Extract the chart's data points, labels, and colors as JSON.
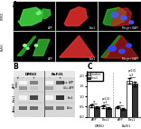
{
  "panel_A": {
    "rows": [
      "DMSO",
      "BaFil1"
    ],
    "cols": [
      "APP",
      "Eas1",
      "Merge+DAPI"
    ],
    "bg_color": "#000000",
    "row_label_color": "#000000"
  },
  "panel_B": {
    "conditions": [
      "DMSO",
      "BaFil1"
    ],
    "lane_signs": [
      "-",
      "+",
      "-",
      "+"
    ],
    "band_groups": [
      {
        "label": "Ima. APP",
        "intensities": [
          0.05,
          0.55,
          0.05,
          0.75
        ]
      },
      {
        "label": "Glu. APP",
        "intensities": [
          0.45,
          0.25,
          0.4,
          0.15
        ]
      },
      {
        "label": "Eas1",
        "intensities": [
          0.05,
          0.8,
          0.05,
          0.9
        ]
      },
      {
        "label": "Actin",
        "intensities": [
          0.65,
          0.65,
          0.6,
          0.6
        ]
      }
    ],
    "bg_color": "#d8d8d8"
  },
  "panel_C": {
    "x_labels": [
      "APP",
      "Eas1",
      "APP",
      "Eas1"
    ],
    "group_labels": [
      "DMSO",
      "BaFil1"
    ],
    "transfect_values": [
      0.55,
      0.5,
      0.48,
      1.75
    ],
    "omni1_values": [
      0.48,
      0.42,
      0.38,
      1.6
    ],
    "transfect_errors": [
      0.06,
      0.05,
      0.05,
      0.12
    ],
    "omni1_errors": [
      0.05,
      0.05,
      0.04,
      0.11
    ],
    "stats": [
      "ns",
      "p<0.03\nn=5",
      "ns",
      "p<0.01\nn=5"
    ],
    "ylim": [
      0,
      2.2
    ],
    "yticks": [
      0,
      0.5,
      1.0,
      1.5,
      2.0
    ],
    "transfect_color": "#ffffff",
    "omni1_color": "#333333",
    "bar_edge": "#000000"
  },
  "figure_bg": "#ffffff",
  "label_A": "A",
  "label_B": "B",
  "label_C": "C"
}
